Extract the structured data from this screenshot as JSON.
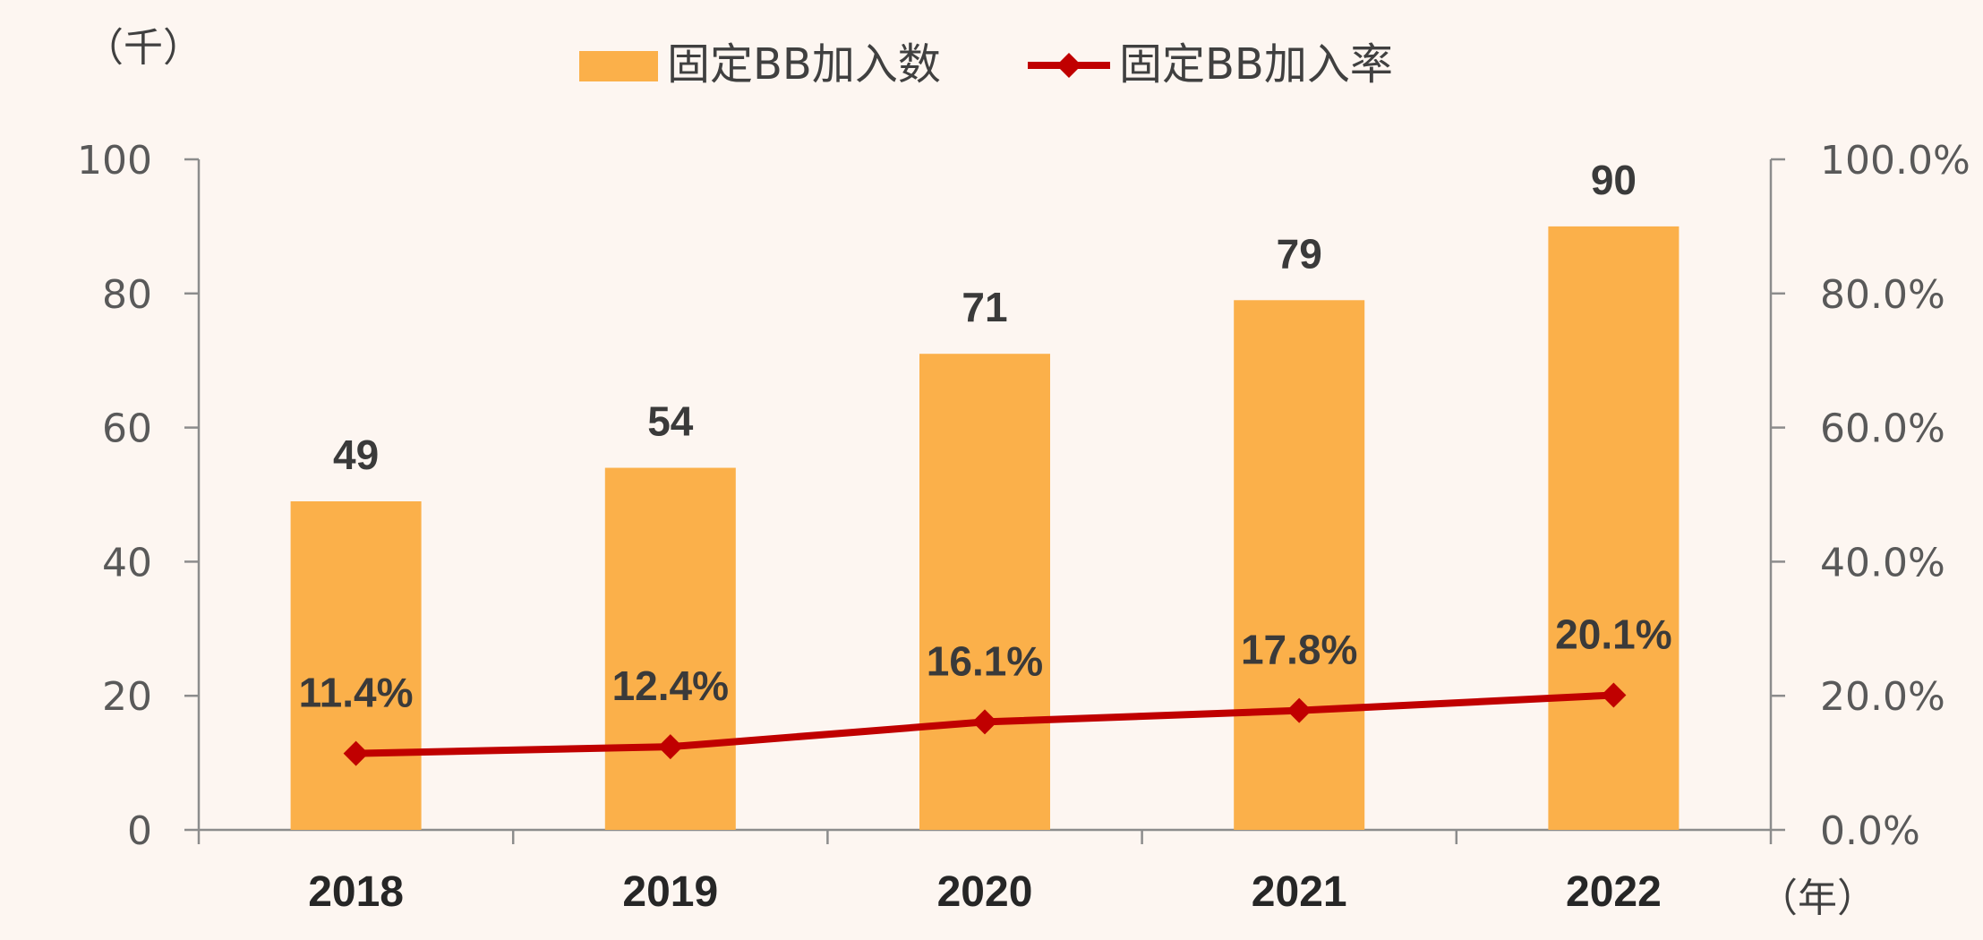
{
  "chart_data": {
    "type": "bar",
    "categories": [
      "2018",
      "2019",
      "2020",
      "2021",
      "2022"
    ],
    "series": [
      {
        "name": "固定BB加入数",
        "type": "bar",
        "axis": "left",
        "values": [
          49,
          54,
          71,
          79,
          90
        ],
        "labels": [
          "49",
          "54",
          "71",
          "79",
          "90"
        ],
        "color": "#fbb04a"
      },
      {
        "name": "固定BB加入率",
        "type": "line",
        "axis": "right",
        "values": [
          11.4,
          12.4,
          16.1,
          17.8,
          20.1
        ],
        "labels": [
          "11.4%",
          "12.4%",
          "16.1%",
          "17.8%",
          "20.1%"
        ],
        "color": "#c00000",
        "marker": "diamond"
      }
    ],
    "y_left": {
      "unit": "（千）",
      "ylim": [
        0,
        100
      ],
      "ticks": [
        "0",
        "20",
        "40",
        "60",
        "80",
        "100"
      ]
    },
    "y_right": {
      "ylim": [
        0,
        100
      ],
      "ticks": [
        "0.0%",
        "20.0%",
        "40.0%",
        "60.0%",
        "80.0%",
        "100.0%"
      ]
    },
    "x_unit": "（年）",
    "legend_position": "top-center",
    "grid": false
  }
}
